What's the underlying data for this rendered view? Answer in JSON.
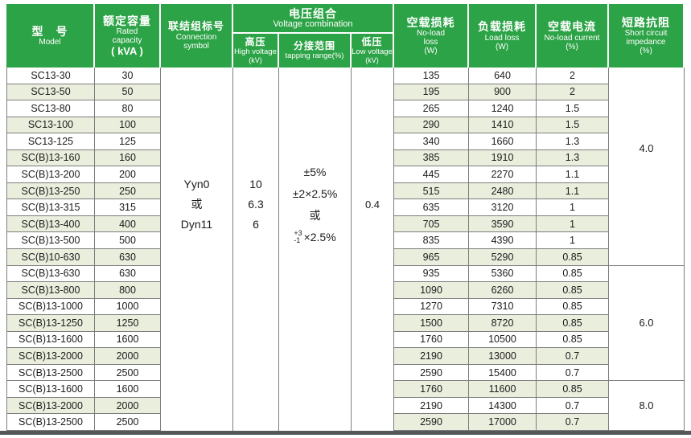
{
  "colors": {
    "header_green": "#2ca346",
    "row_shade": "#eaeedd",
    "border_gray": "#7d7d7d",
    "bottom_bar": "#54585a"
  },
  "header": {
    "model_zh": "型　号",
    "model_en": "Model",
    "capacity_zh": "额定容量",
    "capacity_en_lines": [
      "Rated",
      "capacity"
    ],
    "capacity_unit": "( kVA )",
    "connection_zh": "联结组标号",
    "connection_en_lines": [
      "Connection",
      "symbol"
    ],
    "voltage_zh": "电压组合",
    "voltage_en": "Voltage combination",
    "hv_zh": "高压",
    "hv_en": "High voltage",
    "hv_unit": "(kV)",
    "tapping_zh": "分接范围",
    "tapping_en": "tapping range(%)",
    "lv_zh": "低压",
    "lv_en": "Low voltage",
    "lv_unit": "(kV)",
    "noload_zh": "空载损耗",
    "noload_en_lines": [
      "No-load",
      "loss",
      "(W)"
    ],
    "load_zh": "负载损耗",
    "load_en_lines": [
      "Load loss",
      "(W)"
    ],
    "current_zh": "空载电流",
    "current_en_lines": [
      "No-load current",
      "(%)"
    ],
    "impedance_zh": "短路抗阻",
    "impedance_en_lines": [
      "Short circuit",
      "impedance",
      "(%)"
    ]
  },
  "merged": {
    "connection_lines": [
      "Yyn0",
      "或",
      "Dyn11"
    ],
    "hv_lines": [
      "10",
      "6.3",
      "6"
    ],
    "tapping_lines": [
      "±5%",
      "±2×2.5%",
      "或"
    ],
    "tapping_last": {
      "sup": "+3",
      "sub": "-1",
      "rest": "×2.5%"
    },
    "lv_value": "0.4"
  },
  "rows": [
    {
      "model": "SC13-30",
      "kva": "30",
      "noload": "135",
      "load": "640",
      "current": "2",
      "shade_left": false,
      "shade_right": false
    },
    {
      "model": "SC13-50",
      "kva": "50",
      "noload": "195",
      "load": "900",
      "current": "2",
      "shade_left": true,
      "shade_right": true
    },
    {
      "model": "SC13-80",
      "kva": "80",
      "noload": "265",
      "load": "1240",
      "current": "1.5",
      "shade_left": false,
      "shade_right": false
    },
    {
      "model": "SC13-100",
      "kva": "100",
      "noload": "290",
      "load": "1410",
      "current": "1.5",
      "shade_left": true,
      "shade_right": true
    },
    {
      "model": "SC13-125",
      "kva": "125",
      "noload": "340",
      "load": "1660",
      "current": "1.3",
      "shade_left": false,
      "shade_right": false
    },
    {
      "model": "SC(B)13-160",
      "kva": "160",
      "noload": "385",
      "load": "1910",
      "current": "1.3",
      "shade_left": true,
      "shade_right": true
    },
    {
      "model": "SC(B)13-200",
      "kva": "200",
      "noload": "445",
      "load": "2270",
      "current": "1.1",
      "shade_left": false,
      "shade_right": false
    },
    {
      "model": "SC(B)13-250",
      "kva": "250",
      "noload": "515",
      "load": "2480",
      "current": "1.1",
      "shade_left": true,
      "shade_right": true
    },
    {
      "model": "SC(B)13-315",
      "kva": "315",
      "noload": "635",
      "load": "3120",
      "current": "1",
      "shade_left": false,
      "shade_right": false
    },
    {
      "model": "SC(B)13-400",
      "kva": "400",
      "noload": "705",
      "load": "3590",
      "current": "1",
      "shade_left": true,
      "shade_right": true
    },
    {
      "model": "SC(B)13-500",
      "kva": "500",
      "noload": "835",
      "load": "4390",
      "current": "1",
      "shade_left": false,
      "shade_right": false
    },
    {
      "model": "SC(B)10-630",
      "kva": "630",
      "noload": "965",
      "load": "5290",
      "current": "0.85",
      "shade_left": true,
      "shade_right": true
    },
    {
      "model": "SC(B)13-630",
      "kva": "630",
      "noload": "935",
      "load": "5360",
      "current": "0.85",
      "shade_left": false,
      "shade_right": false
    },
    {
      "model": "SC(B)13-800",
      "kva": "800",
      "noload": "1090",
      "load": "6260",
      "current": "0.85",
      "shade_left": true,
      "shade_right": true
    },
    {
      "model": "SC(B)13-1000",
      "kva": "1000",
      "noload": "1270",
      "load": "7310",
      "current": "0.85",
      "shade_left": false,
      "shade_right": false
    },
    {
      "model": "SC(B)13-1250",
      "kva": "1250",
      "noload": "1500",
      "load": "8720",
      "current": "0.85",
      "shade_left": true,
      "shade_right": true
    },
    {
      "model": "SC(B)13-1600",
      "kva": "1600",
      "noload": "1760",
      "load": "10500",
      "current": "0.85",
      "shade_left": false,
      "shade_right": false
    },
    {
      "model": "SC(B)13-2000",
      "kva": "2000",
      "noload": "2190",
      "load": "13000",
      "current": "0.7",
      "shade_left": true,
      "shade_right": true
    },
    {
      "model": "SC(B)13-2500",
      "kva": "2500",
      "noload": "2590",
      "load": "15400",
      "current": "0.7",
      "shade_left": false,
      "shade_right": false
    },
    {
      "model": "SC(B)13-1600",
      "kva": "1600",
      "noload": "1760",
      "load": "11600",
      "current": "0.85",
      "shade_left": false,
      "shade_right": true
    },
    {
      "model": "SC(B)13-2000",
      "kva": "2000",
      "noload": "2190",
      "load": "14300",
      "current": "0.7",
      "shade_left": true,
      "shade_right": false
    },
    {
      "model": "SC(B)13-2500",
      "kva": "2500",
      "noload": "2590",
      "load": "17000",
      "current": "0.7",
      "shade_left": false,
      "shade_right": true
    }
  ],
  "impedance_groups": [
    {
      "value": "4.0",
      "row_span": 12
    },
    {
      "value": "6.0",
      "row_span": 7
    },
    {
      "value": "8.0",
      "row_span": 3
    }
  ]
}
